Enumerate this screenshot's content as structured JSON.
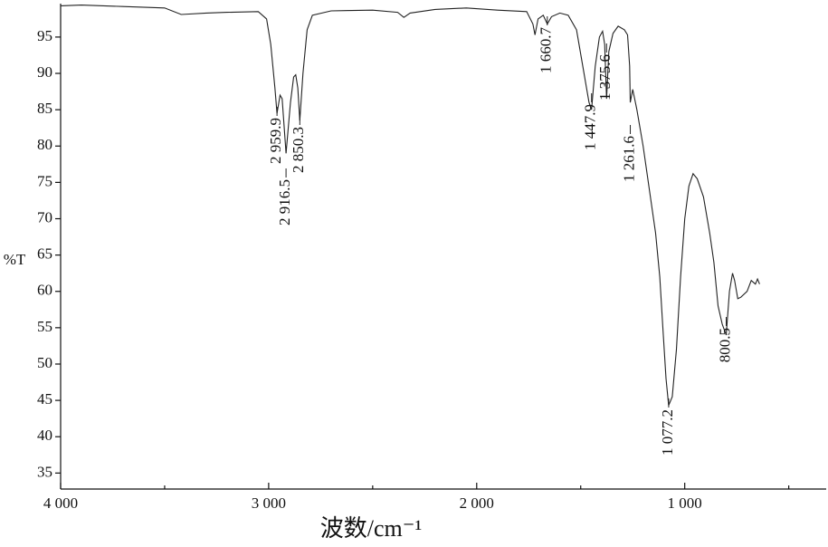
{
  "chart_data": {
    "type": "line",
    "x_label": "波数/cm⁻¹",
    "y_label": "%T",
    "color": "#222222",
    "xlim": [
      4000,
      320
    ],
    "ylim": [
      32.8,
      99.6
    ],
    "xticks": [
      {
        "value": 4000,
        "label": "4 000"
      },
      {
        "value": 3000,
        "label": "3 000"
      },
      {
        "value": 2000,
        "label": "2 000"
      },
      {
        "value": 1000,
        "label": "1 000"
      }
    ],
    "xticks_minor": [
      3500,
      2500,
      1500,
      500
    ],
    "yticks": [
      35,
      40,
      45,
      50,
      55,
      60,
      65,
      70,
      75,
      80,
      85,
      90,
      95
    ],
    "x": [
      4000,
      3900,
      3700,
      3500,
      3420,
      3300,
      3200,
      3050,
      3010,
      2990,
      2970,
      2959.9,
      2945,
      2935,
      2916.5,
      2895,
      2880,
      2870,
      2860,
      2850.3,
      2835,
      2815,
      2790,
      2700,
      2500,
      2380,
      2350,
      2320,
      2200,
      2050,
      1900,
      1760,
      1730,
      1720,
      1705,
      1680,
      1660.7,
      1640,
      1600,
      1560,
      1520,
      1490,
      1460,
      1447.9,
      1430,
      1410,
      1395,
      1385,
      1375.6,
      1365,
      1345,
      1320,
      1290,
      1275,
      1265,
      1261.6,
      1250,
      1230,
      1200,
      1170,
      1140,
      1120,
      1105,
      1090,
      1077.2,
      1060,
      1040,
      1020,
      1000,
      980,
      960,
      940,
      910,
      880,
      860,
      840,
      820,
      800.5,
      785,
      770,
      760,
      745,
      730,
      700,
      680,
      660,
      650,
      640
    ],
    "values": [
      99.3,
      99.4,
      99.2,
      99.0,
      98.1,
      98.3,
      98.4,
      98.5,
      97.5,
      94,
      88,
      84.5,
      87,
      86.5,
      79.0,
      86,
      89.5,
      89.8,
      88,
      83.5,
      90,
      96,
      98,
      98.6,
      98.7,
      98.4,
      97.7,
      98.3,
      98.8,
      99.0,
      98.7,
      98.5,
      96.8,
      95.3,
      97.5,
      98,
      96.8,
      97.8,
      98.3,
      98.0,
      96,
      91,
      86,
      85.0,
      91,
      95,
      95.8,
      94,
      86.5,
      93,
      95.5,
      96.5,
      96,
      95.3,
      91,
      86.0,
      87.8,
      85,
      80,
      74,
      68,
      62,
      55,
      48,
      44.3,
      45.5,
      52,
      62,
      70,
      74.5,
      76.2,
      75.5,
      73,
      68,
      64,
      58,
      55.5,
      54,
      60,
      62.5,
      61.5,
      59,
      59.2,
      60,
      61.5,
      61,
      61.7,
      61.0
    ],
    "annotations": [
      {
        "value": 2959.9,
        "label": "2 959.9"
      },
      {
        "value": 2916.5,
        "label": "2 916.5"
      },
      {
        "value": 2850.3,
        "label": "2 850.3"
      },
      {
        "value": 1660.7,
        "label": "1 660.7"
      },
      {
        "value": 1447.9,
        "label": "1 447.9"
      },
      {
        "value": 1375.6,
        "label": "1 375.6"
      },
      {
        "value": 1261.6,
        "label": "1 261.6"
      },
      {
        "value": 1077.2,
        "label": "1 077.2"
      },
      {
        "value": 800.5,
        "label": "800.5"
      }
    ]
  }
}
